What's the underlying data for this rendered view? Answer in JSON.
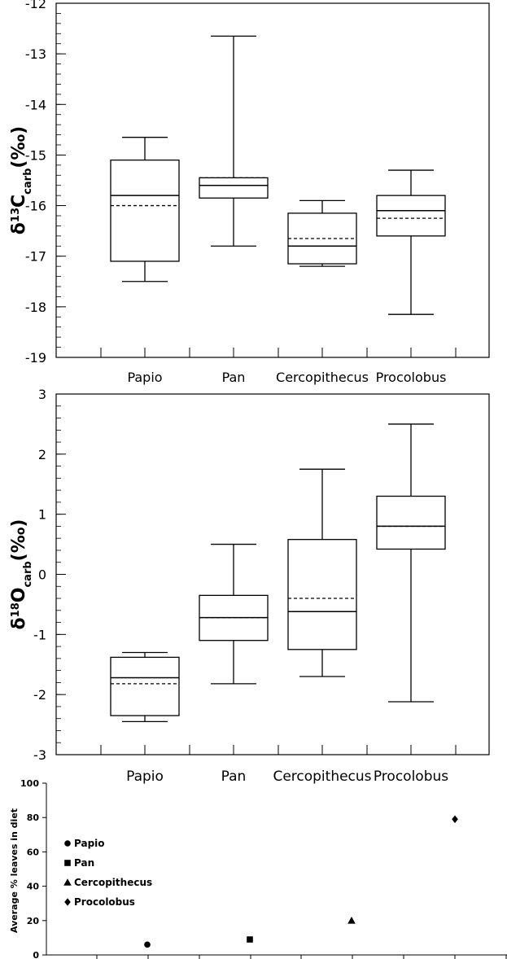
{
  "chart_data": [
    {
      "type": "box",
      "ylabel_main": "δ",
      "ylabel_sup": "13",
      "ylabel_elem": "C",
      "ylabel_sub": "carb",
      "ylabel_unit": "(‰)",
      "ylim": [
        -19,
        -12
      ],
      "yticks": [
        "-12",
        "-13",
        "-14",
        "-15",
        "-16",
        "-17",
        "-18",
        "-19"
      ],
      "categories": [
        "Papio",
        "Pan",
        "Cercopithecus",
        "Procolobus"
      ],
      "boxes": [
        {
          "whisker_low": -17.5,
          "q1": -17.1,
          "median": -15.8,
          "mean": -16.0,
          "q3": -15.1,
          "whisker_high": -14.65
        },
        {
          "whisker_low": -16.8,
          "q1": -15.85,
          "median": -15.6,
          "mean": -15.45,
          "q3": -15.45,
          "whisker_high": -12.65
        },
        {
          "whisker_low": -17.2,
          "q1": -17.15,
          "median": -16.8,
          "mean": -16.65,
          "q3": -16.15,
          "whisker_high": -15.9
        },
        {
          "whisker_low": -18.15,
          "q1": -16.6,
          "median": -16.1,
          "mean": -16.25,
          "q3": -15.8,
          "whisker_high": -15.3
        }
      ]
    },
    {
      "type": "box",
      "ylabel_main": "δ",
      "ylabel_sup": "18",
      "ylabel_elem": "O",
      "ylabel_sub": "carb",
      "ylabel_unit": "(‰)",
      "ylim": [
        -3,
        3
      ],
      "yticks": [
        "3",
        "2",
        "1",
        "0",
        "-1",
        "-2",
        "-3"
      ],
      "categories": [
        "Papio",
        "Pan",
        "Cercopithecus",
        "Procolobus"
      ],
      "boxes": [
        {
          "whisker_low": -2.45,
          "q1": -2.35,
          "median": -1.72,
          "mean": -1.82,
          "q3": -1.38,
          "whisker_high": -1.3
        },
        {
          "whisker_low": -1.82,
          "q1": -1.1,
          "median": -0.72,
          "mean": -0.72,
          "q3": -0.35,
          "whisker_high": 0.5
        },
        {
          "whisker_low": -1.7,
          "q1": -1.25,
          "median": -0.62,
          "mean": -0.4,
          "q3": 0.58,
          "whisker_high": 1.75
        },
        {
          "whisker_low": -2.12,
          "q1": 0.42,
          "median": 0.8,
          "mean": 0.8,
          "q3": 1.3,
          "whisker_high": 2.5
        }
      ]
    },
    {
      "type": "scatter",
      "ylabel": "Average % leaves in diet",
      "ylim": [
        0,
        100
      ],
      "yticks": [
        "100",
        "80",
        "60",
        "40",
        "20",
        "0"
      ],
      "legend": [
        "Papio",
        "Pan",
        "Cercopithecus",
        "Procolobus"
      ],
      "markers": [
        "circle",
        "square",
        "triangle",
        "diamond"
      ],
      "points": [
        {
          "name": "Papio",
          "value": 6
        },
        {
          "name": "Pan",
          "value": 9
        },
        {
          "name": "Cercopithecus",
          "value": 20
        },
        {
          "name": "Procolobus",
          "value": 79
        }
      ]
    }
  ]
}
